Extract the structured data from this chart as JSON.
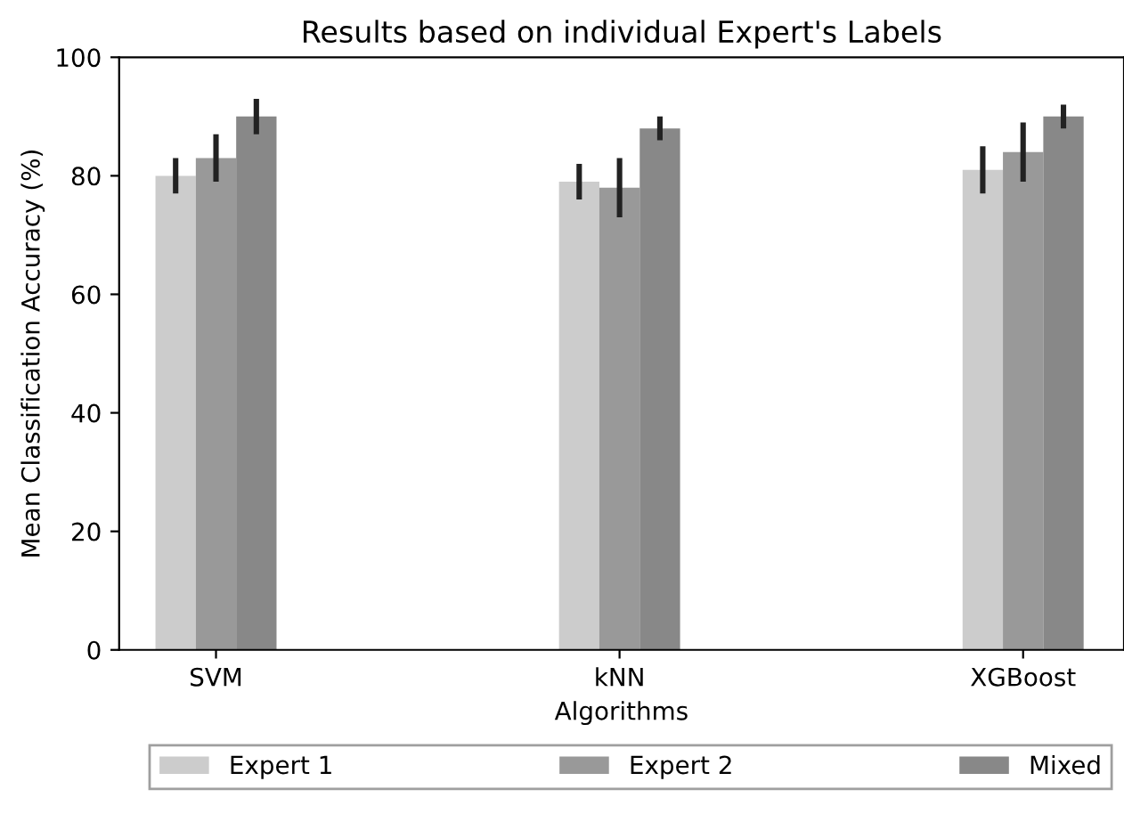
{
  "chart_data": {
    "type": "bar",
    "title": "Results based on individual Expert's Labels",
    "xlabel": "Algorithms",
    "ylabel": "Mean Classification Accuracy (%)",
    "categories": [
      "SVM",
      "kNN",
      "XGBoost"
    ],
    "series": [
      {
        "name": "Expert 1",
        "color": "#cccccc",
        "values": [
          80,
          79,
          81
        ],
        "errors": [
          3,
          3,
          4
        ]
      },
      {
        "name": "Expert 2",
        "color": "#999999",
        "values": [
          83,
          78,
          84
        ],
        "errors": [
          4,
          5,
          5
        ]
      },
      {
        "name": "Mixed",
        "color": "#888888",
        "values": [
          90,
          88,
          90
        ],
        "errors": [
          3,
          2,
          2
        ]
      }
    ],
    "ylim": [
      0,
      100
    ],
    "yticks": [
      0,
      20,
      40,
      60,
      80,
      100
    ],
    "grid": false,
    "legend": "bottom"
  }
}
